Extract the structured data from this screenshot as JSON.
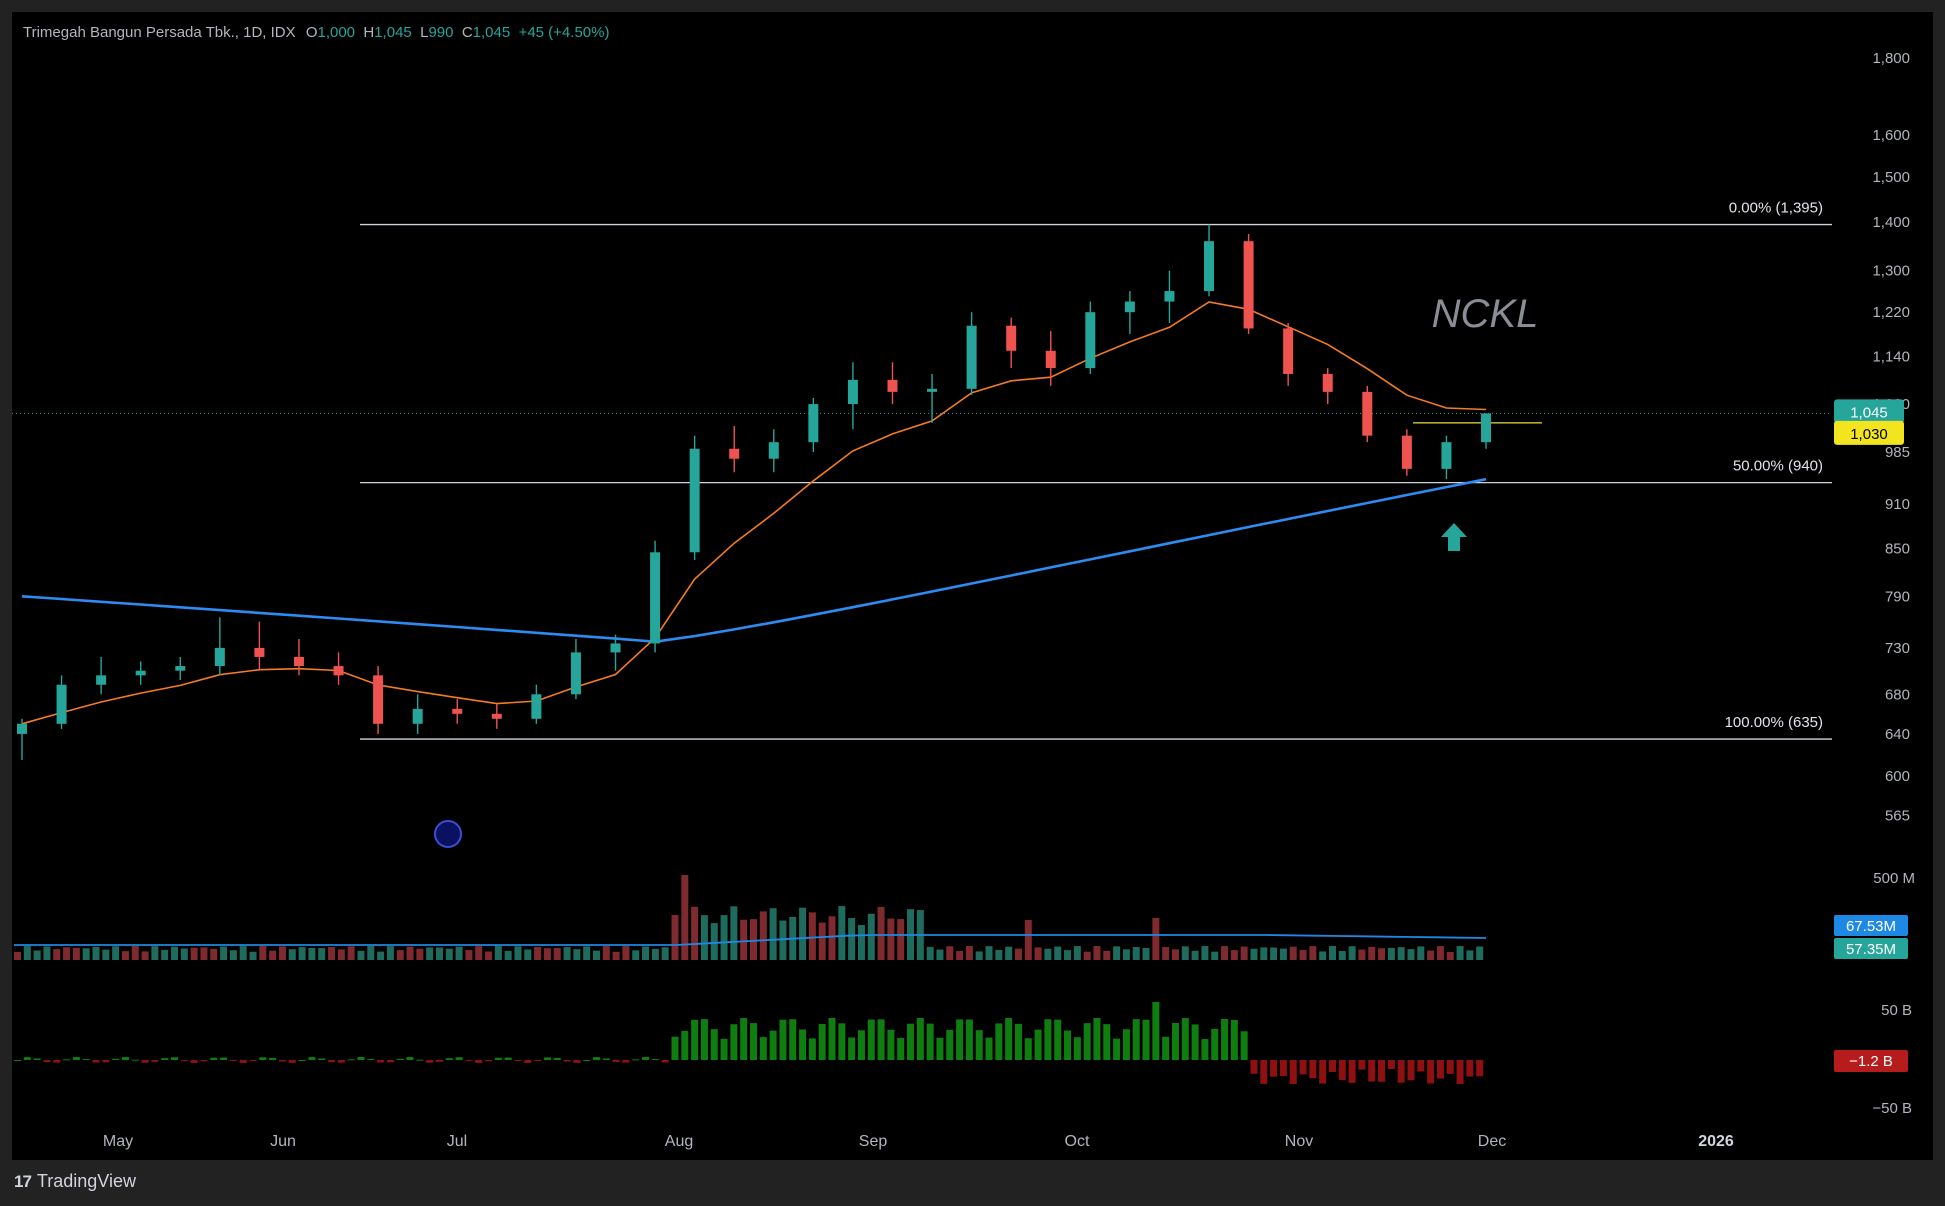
{
  "header": {
    "symbol_name": "Trimegah Bangun Persada Tbk., 1D, IDX",
    "open_label": "O",
    "open": "1,000",
    "high_label": "H",
    "high": "1,045",
    "low_label": "L",
    "low": "990",
    "close_label": "C",
    "close": "1,045",
    "change": "+45 (+4.50%)"
  },
  "watermark": "NCKL",
  "brand": {
    "name": "TradingView",
    "logo": "17"
  },
  "colors": {
    "up": "#26a69a",
    "down": "#ef5350",
    "ema_short": "#f57c20",
    "ma_long": "#2c8cf2",
    "fib_line": "#d1d4dc",
    "volume_ma": "#1e88e5",
    "flow_up": "#0f7d0f",
    "flow_down": "#8f1010",
    "marker": "#26a69a"
  },
  "chart_data": {
    "type": "candlestick",
    "price_axis": {
      "ticks": [
        "1,800",
        "1,600",
        "1,500",
        "1,400",
        "1,300",
        "1,220",
        "1,140",
        "1,060",
        "985",
        "910",
        "850",
        "790",
        "730",
        "680",
        "640",
        "600",
        "565"
      ],
      "scale": "log",
      "range": [
        540,
        1850
      ]
    },
    "time_axis": {
      "ticks": [
        "May",
        "Jun",
        "Jul",
        "Aug",
        "Sep",
        "Oct",
        "Nov",
        "Dec",
        "2026"
      ]
    },
    "last_price_badge": "1,045",
    "horizontal_line_badge": "1,030",
    "horizontal_line_value": 1030,
    "fib_levels": [
      {
        "label": "0.00% (1,395)",
        "value": 1395
      },
      {
        "label": "50.00% (940)",
        "value": 940
      },
      {
        "label": "100.00% (635)",
        "value": 635
      }
    ],
    "candles_weekly_approx": [
      {
        "o": 640,
        "h": 655,
        "l": 615,
        "c": 650
      },
      {
        "o": 650,
        "h": 700,
        "l": 645,
        "c": 690
      },
      {
        "o": 690,
        "h": 720,
        "l": 680,
        "c": 700
      },
      {
        "o": 700,
        "h": 715,
        "l": 690,
        "c": 705
      },
      {
        "o": 705,
        "h": 720,
        "l": 695,
        "c": 710
      },
      {
        "o": 710,
        "h": 765,
        "l": 700,
        "c": 730
      },
      {
        "o": 730,
        "h": 760,
        "l": 705,
        "c": 720
      },
      {
        "o": 720,
        "h": 740,
        "l": 700,
        "c": 710
      },
      {
        "o": 710,
        "h": 725,
        "l": 690,
        "c": 700
      },
      {
        "o": 700,
        "h": 710,
        "l": 640,
        "c": 650
      },
      {
        "o": 650,
        "h": 680,
        "l": 640,
        "c": 665
      },
      {
        "o": 665,
        "h": 675,
        "l": 650,
        "c": 660
      },
      {
        "o": 660,
        "h": 670,
        "l": 645,
        "c": 655
      },
      {
        "o": 655,
        "h": 690,
        "l": 650,
        "c": 680
      },
      {
        "o": 680,
        "h": 740,
        "l": 675,
        "c": 725
      },
      {
        "o": 725,
        "h": 745,
        "l": 705,
        "c": 735
      },
      {
        "o": 735,
        "h": 860,
        "l": 725,
        "c": 845
      },
      {
        "o": 845,
        "h": 1010,
        "l": 835,
        "c": 990
      },
      {
        "o": 990,
        "h": 1025,
        "l": 955,
        "c": 975
      },
      {
        "o": 975,
        "h": 1020,
        "l": 955,
        "c": 1000
      },
      {
        "o": 1000,
        "h": 1070,
        "l": 985,
        "c": 1060
      },
      {
        "o": 1060,
        "h": 1130,
        "l": 1020,
        "c": 1100
      },
      {
        "o": 1100,
        "h": 1130,
        "l": 1060,
        "c": 1080
      },
      {
        "o": 1080,
        "h": 1110,
        "l": 1030,
        "c": 1085
      },
      {
        "o": 1085,
        "h": 1220,
        "l": 1075,
        "c": 1195
      },
      {
        "o": 1195,
        "h": 1210,
        "l": 1120,
        "c": 1150
      },
      {
        "o": 1150,
        "h": 1185,
        "l": 1090,
        "c": 1120
      },
      {
        "o": 1120,
        "h": 1240,
        "l": 1110,
        "c": 1220
      },
      {
        "o": 1220,
        "h": 1260,
        "l": 1180,
        "c": 1240
      },
      {
        "o": 1240,
        "h": 1300,
        "l": 1200,
        "c": 1260
      },
      {
        "o": 1260,
        "h": 1395,
        "l": 1250,
        "c": 1360
      },
      {
        "o": 1360,
        "h": 1375,
        "l": 1180,
        "c": 1190
      },
      {
        "o": 1190,
        "h": 1200,
        "l": 1090,
        "c": 1110
      },
      {
        "o": 1110,
        "h": 1120,
        "l": 1060,
        "c": 1080
      },
      {
        "o": 1080,
        "h": 1090,
        "l": 1000,
        "c": 1010
      },
      {
        "o": 1010,
        "h": 1020,
        "l": 950,
        "c": 960
      },
      {
        "o": 960,
        "h": 1010,
        "l": 945,
        "c": 1000
      },
      {
        "o": 1000,
        "h": 1045,
        "l": 990,
        "c": 1045
      }
    ],
    "volume_axis": {
      "ticks": [
        "500 M"
      ]
    },
    "volume_badges": [
      "67.53M",
      "57.35M"
    ],
    "flow_axis": {
      "ticks": [
        "50 B",
        "−50 B"
      ]
    },
    "flow_badge": "−1.2 B"
  }
}
